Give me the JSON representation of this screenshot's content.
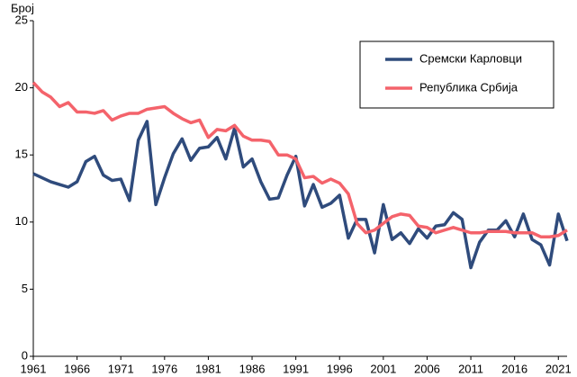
{
  "chart_data": {
    "type": "line",
    "y_label": "Број",
    "x": [
      1961,
      1962,
      1963,
      1964,
      1965,
      1966,
      1967,
      1968,
      1969,
      1970,
      1971,
      1972,
      1973,
      1974,
      1975,
      1976,
      1977,
      1978,
      1979,
      1980,
      1981,
      1982,
      1983,
      1984,
      1985,
      1986,
      1987,
      1988,
      1989,
      1990,
      1991,
      1992,
      1993,
      1994,
      1995,
      1996,
      1997,
      1998,
      1999,
      2000,
      2001,
      2002,
      2003,
      2004,
      2005,
      2006,
      2007,
      2008,
      2009,
      2010,
      2011,
      2012,
      2013,
      2014,
      2015,
      2016,
      2017,
      2018,
      2019,
      2020,
      2021,
      2022
    ],
    "series": [
      {
        "name": "Сремски Карловци",
        "color": "#2f4b7c",
        "values": [
          13.6,
          13.3,
          13.0,
          12.8,
          12.6,
          13.0,
          14.5,
          14.9,
          13.5,
          13.1,
          13.2,
          11.6,
          16.1,
          17.5,
          11.3,
          13.3,
          15.1,
          16.2,
          14.6,
          15.5,
          15.6,
          16.3,
          14.7,
          17.0,
          14.1,
          14.7,
          13.0,
          11.7,
          11.8,
          13.5,
          14.9,
          11.2,
          12.8,
          11.1,
          11.4,
          12.0,
          8.8,
          10.2,
          10.2,
          7.7,
          11.3,
          8.7,
          9.2,
          8.4,
          9.5,
          8.8,
          9.7,
          9.8,
          10.7,
          10.2,
          6.6,
          8.5,
          9.4,
          9.4,
          10.1,
          8.9,
          10.6,
          8.7,
          8.3,
          6.8,
          10.6,
          8.6
        ]
      },
      {
        "name": "Република Србија",
        "color": "#f4636b",
        "values": [
          20.4,
          19.7,
          19.3,
          18.6,
          18.9,
          18.2,
          18.2,
          18.1,
          18.3,
          17.6,
          17.9,
          18.1,
          18.1,
          18.4,
          18.5,
          18.6,
          18.1,
          17.7,
          17.4,
          17.6,
          16.3,
          16.9,
          16.8,
          17.2,
          16.4,
          16.1,
          16.1,
          16.0,
          15.0,
          15.0,
          14.7,
          13.3,
          13.4,
          12.9,
          13.2,
          12.9,
          12.1,
          9.9,
          9.2,
          9.4,
          9.9,
          10.4,
          10.6,
          10.5,
          9.7,
          9.6,
          9.2,
          9.4,
          9.6,
          9.4,
          9.2,
          9.2,
          9.3,
          9.3,
          9.3,
          9.2,
          9.2,
          9.2,
          8.9,
          8.9,
          9.0,
          9.4
        ]
      }
    ],
    "xlim": [
      1961,
      2022
    ],
    "xticks": [
      1961,
      1966,
      1971,
      1976,
      1981,
      1986,
      1991,
      1996,
      2001,
      2006,
      2011,
      2016,
      2021
    ],
    "ylim": [
      0,
      25
    ],
    "yticks": [
      0,
      5,
      10,
      15,
      20,
      25
    ],
    "grid": false,
    "legend": "upper right"
  }
}
